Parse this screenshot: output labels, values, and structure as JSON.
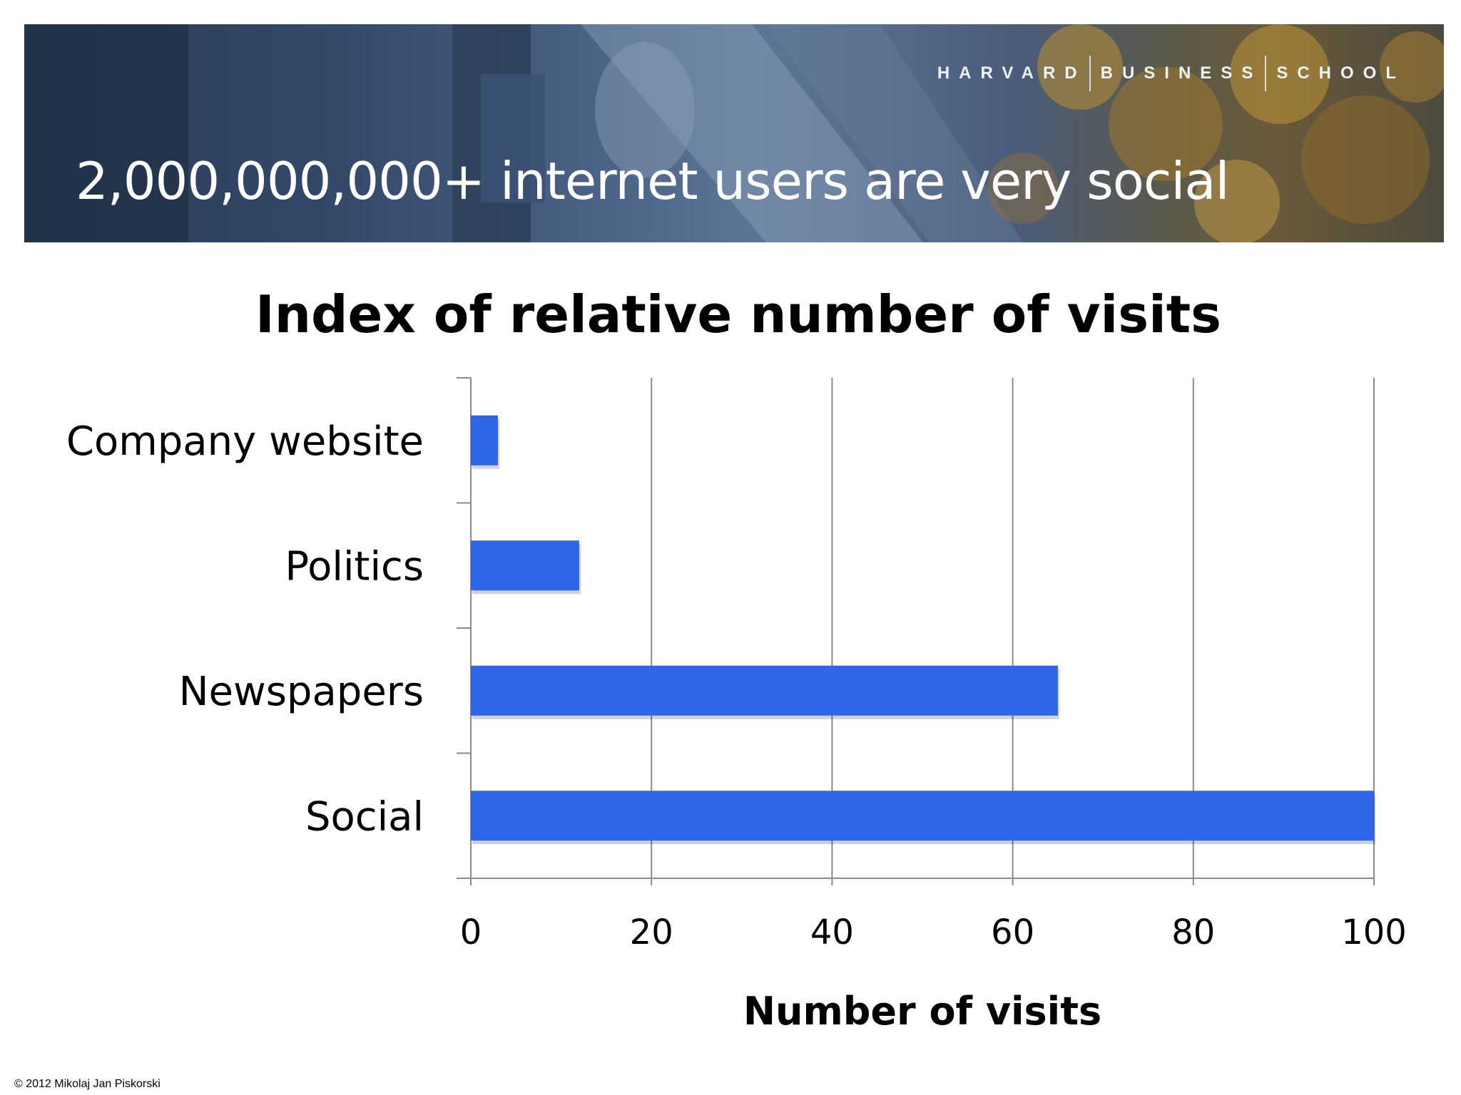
{
  "banner": {
    "brand": [
      "HARVARD",
      "BUSINESS",
      "SCHOOL"
    ],
    "headline": "2,000,000,000+ internet users are very social"
  },
  "footer": {
    "copyright": "© 2012 Mikolaj Jan Piskorski"
  },
  "colors": {
    "bar": "#2f66e8",
    "grid": "#8a8a8a",
    "banner_dark": "#2a3b52"
  },
  "chart_data": {
    "type": "bar",
    "orientation": "horizontal",
    "title": "Index of relative number of visits",
    "xlabel": "Number of visits",
    "ylabel": "",
    "categories": [
      "Company website",
      "Politics",
      "Newspapers",
      "Social"
    ],
    "values": [
      3,
      12,
      65,
      100
    ],
    "xlim": [
      0,
      100
    ],
    "xticks": [
      "0",
      "20",
      "40",
      "60",
      "80",
      "100"
    ],
    "grid": true,
    "legend": "none"
  }
}
